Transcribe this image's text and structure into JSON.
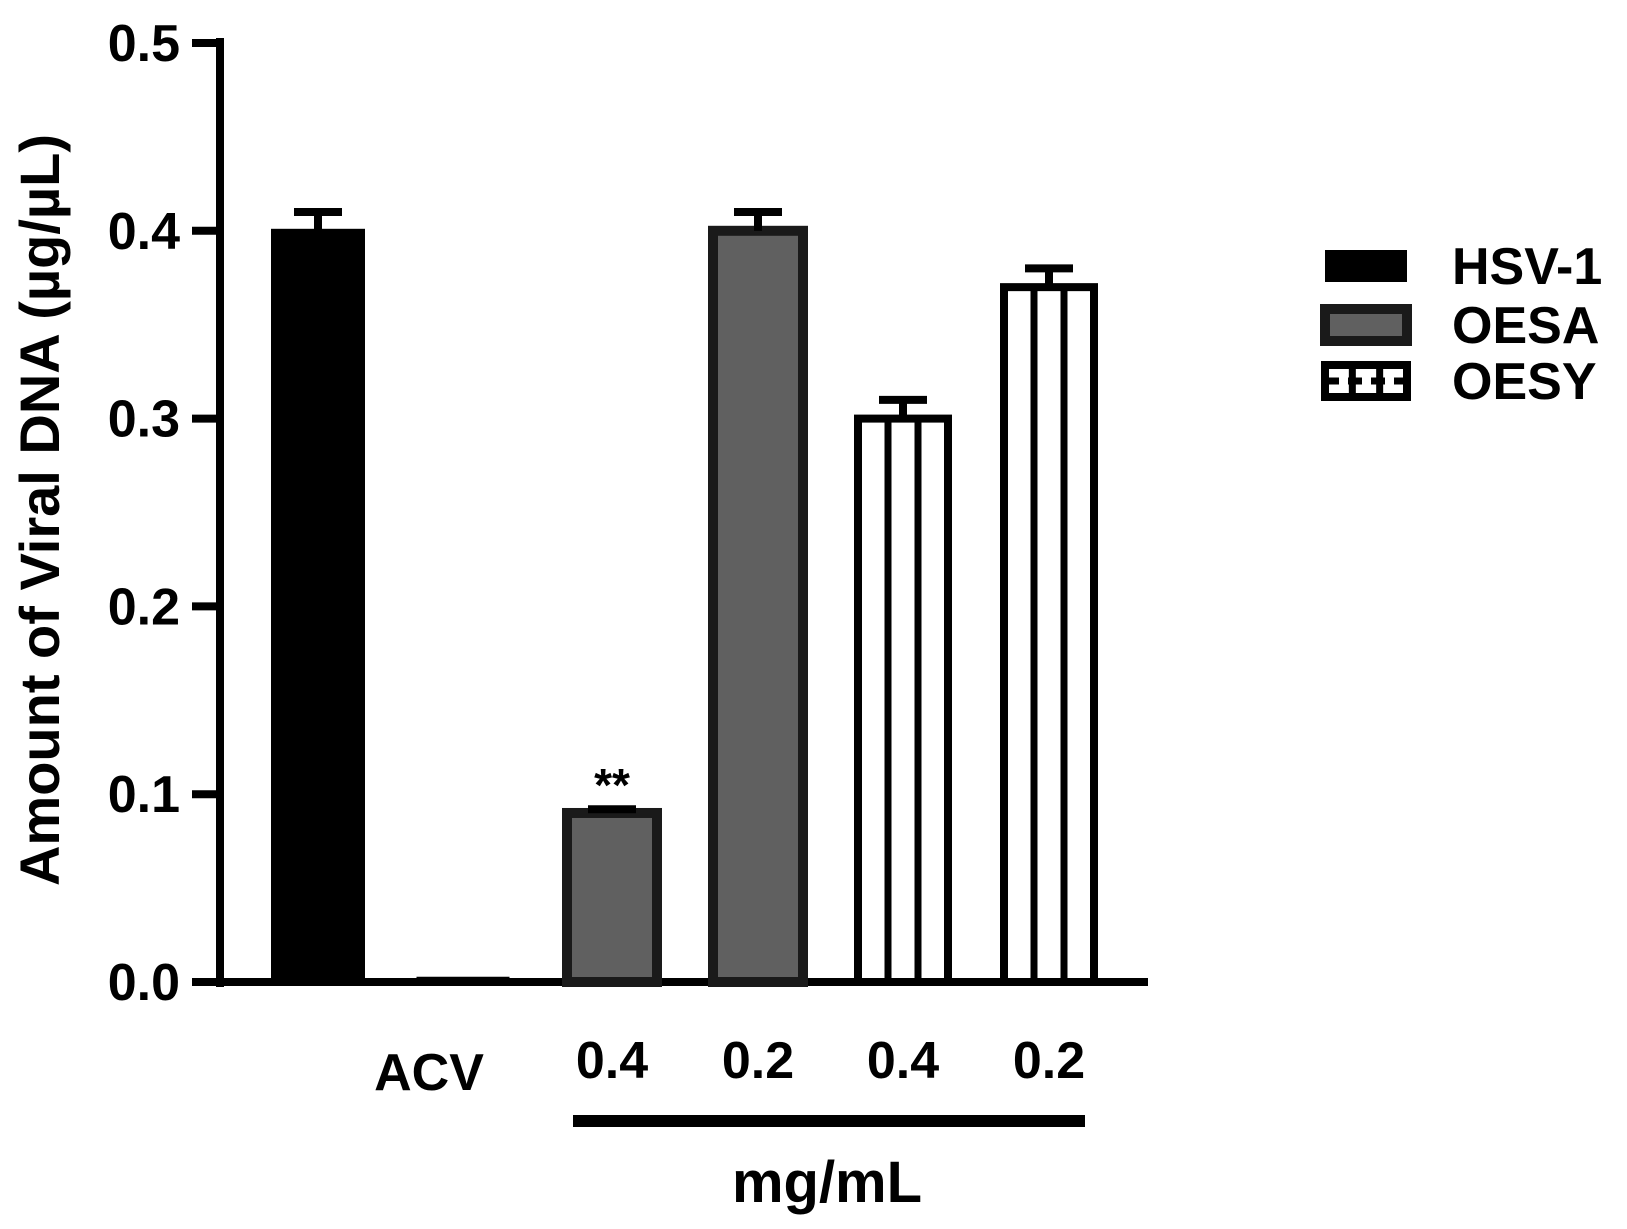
{
  "chart_data": {
    "type": "bar",
    "title": "",
    "xlabel": "",
    "ylabel": "Amount of Viral DNA (µg/µL)",
    "ylim": [
      0,
      0.5
    ],
    "yticks": [
      "0.0",
      "0.1",
      "0.2",
      "0.3",
      "0.4",
      "0.5"
    ],
    "unit_label": "mg/mL",
    "legend_position": "right",
    "grid": false,
    "categories": [
      "",
      "ACV",
      "0.4",
      "0.2",
      "0.4",
      "0.2"
    ],
    "bars": [
      {
        "category": "",
        "series": "HSV-1",
        "value": 0.4,
        "error": 0.01,
        "annotation": ""
      },
      {
        "category": "ACV",
        "series": "HSV-1",
        "value": 0.002,
        "error": 0.0,
        "annotation": ""
      },
      {
        "category": "0.4",
        "series": "OESA",
        "value": 0.09,
        "error": 0.002,
        "annotation": "**"
      },
      {
        "category": "0.2",
        "series": "OESA",
        "value": 0.4,
        "error": 0.01,
        "annotation": ""
      },
      {
        "category": "0.4",
        "series": "OESY",
        "value": 0.3,
        "error": 0.01,
        "annotation": ""
      },
      {
        "category": "0.2",
        "series": "OESY",
        "value": 0.37,
        "error": 0.01,
        "annotation": ""
      }
    ],
    "series": [
      {
        "name": "HSV-1",
        "color": "#000000",
        "pattern": "solid"
      },
      {
        "name": "OESA",
        "color": "#606060",
        "pattern": "solid"
      },
      {
        "name": "OESY",
        "color": "#ffffff",
        "pattern": "vertical-stripes"
      }
    ]
  }
}
